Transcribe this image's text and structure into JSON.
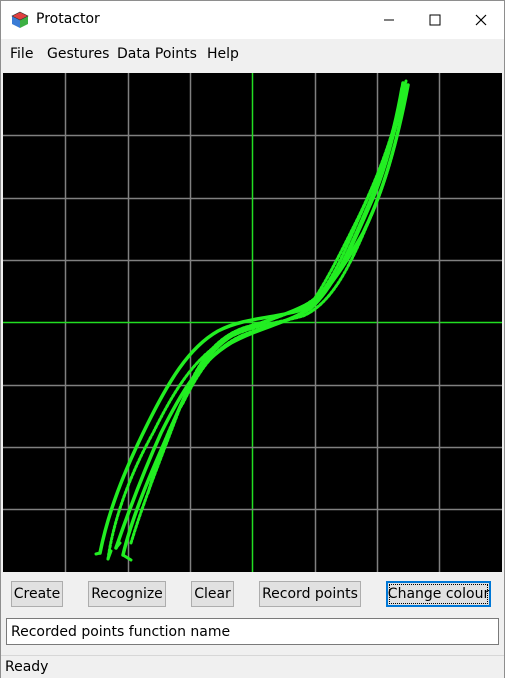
{
  "window": {
    "title": "Protactor"
  },
  "menu": [
    "File",
    "Gestures",
    "Data Points",
    "Help"
  ],
  "toolbar": {
    "create": "Create",
    "recognize": "Recognize",
    "clear": "Clear",
    "record": "Record points",
    "change_colour": "Change colour"
  },
  "textfield": {
    "value": "Recorded points function name"
  },
  "status": "Ready",
  "colors": {
    "stroke": "#22ee22",
    "grid": "#808080",
    "axis": "#22dd22",
    "background": "#000000"
  }
}
